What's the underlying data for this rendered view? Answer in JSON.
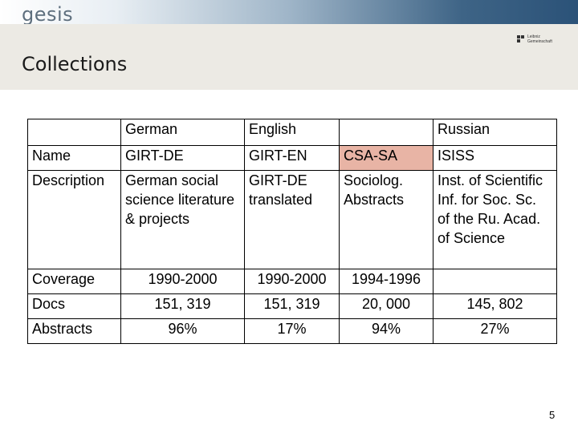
{
  "header": {
    "logo_text": "gesis",
    "leibniz_line1": "Leibniz",
    "leibniz_line2": "Gemeinschaft"
  },
  "slide": {
    "title": "Collections",
    "page_number": "5"
  },
  "table": {
    "header": [
      "",
      "German",
      "English",
      "",
      "Russian"
    ],
    "rows": [
      {
        "label": "Name",
        "cells": [
          "GIRT-DE",
          "GIRT-EN",
          "CSA-SA",
          "ISISS"
        ]
      },
      {
        "label": "Description",
        "cells": [
          "German social science literature & projects",
          "GIRT-DE translated",
          "Sociolog. Abstracts",
          "Inst. of Scientific Inf. for Soc. Sc. of the Ru. Acad. of Science"
        ]
      },
      {
        "label": "Coverage",
        "cells": [
          "1990-2000",
          "1990-2000",
          "1994-1996",
          ""
        ]
      },
      {
        "label": "Docs",
        "cells": [
          "151, 319",
          "151, 319",
          "20, 000",
          "145, 802"
        ]
      },
      {
        "label": "Abstracts",
        "cells": [
          "96%",
          "17%",
          "94%",
          "27%"
        ]
      }
    ],
    "highlight_color": "#e8b4a5"
  },
  "colors": {
    "band": "#eceae4",
    "bar_dark": "#2b5278"
  }
}
